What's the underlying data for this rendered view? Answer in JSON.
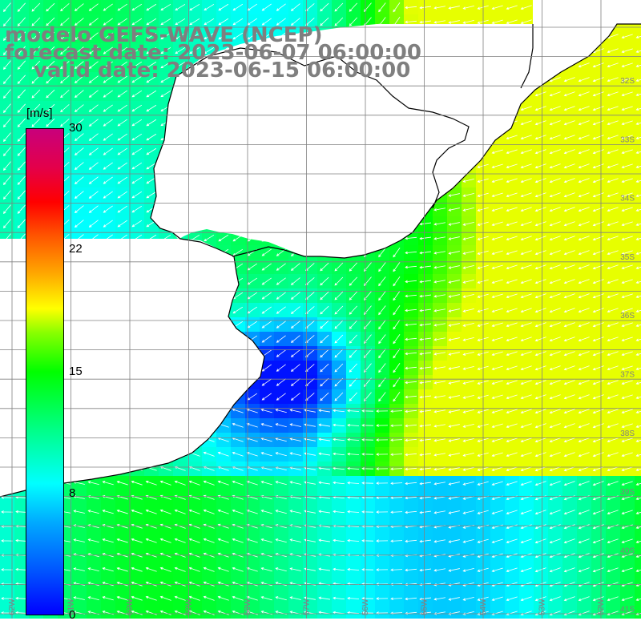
{
  "title": {
    "line1": "modelo GEFS-WAVE (NCEP)",
    "line2": "forecast date: 2023-06-07 06:00:00",
    "line3": "valid date: 2023-06-15 06:00:00"
  },
  "colorbar": {
    "units": "[m/s]",
    "ticks": [
      "30",
      "22",
      "15",
      "8",
      "0"
    ],
    "colors": [
      "#0000ff",
      "#00aaff",
      "#00ffff",
      "#00ff00",
      "#ffff00",
      "#ff0000",
      "#c8007c"
    ]
  },
  "map": {
    "lat_labels": [
      "32S",
      "33S",
      "34S",
      "35S",
      "36S",
      "37S",
      "38S",
      "39S",
      "40S",
      "41S"
    ],
    "lon_labels": [
      "62W",
      "61W",
      "60W",
      "59W",
      "58W",
      "57W",
      "56W",
      "55W",
      "54W",
      "53W",
      "52W"
    ],
    "land_color": "#ffffff",
    "coast_color": "#000000",
    "grid_color": "#808080",
    "arrow_color": "#ffffff"
  }
}
